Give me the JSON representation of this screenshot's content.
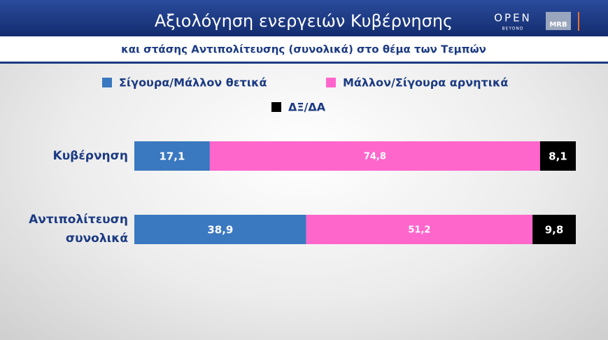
{
  "header": {
    "logo_top": "OPEN",
    "logo_bottom": "BEYOND",
    "logo_box": "MRB"
  },
  "chart_data": {
    "type": "stacked-barh",
    "title": "Αξιολόγηση ενεργειών Κυβέρνησης",
    "subtitle": "και στάσης Αντιπολίτευσης (συνολικά) στο θέμα των Τεμπών",
    "categories": [
      "Κυβέρνηση",
      "Αντιπολίτευση συνολικά"
    ],
    "series": [
      {
        "name": "Σίγουρα/Μάλλον θετικά",
        "color": "#3a78c0",
        "values": [
          17.1,
          38.9
        ],
        "value_labels": [
          "17,1",
          "38,9"
        ]
      },
      {
        "name": "Μάλλον/Σίγουρα αρνητικά",
        "color": "#ff66cc",
        "values": [
          74.8,
          51.2
        ],
        "value_labels": [
          "74,8",
          "51,2"
        ]
      },
      {
        "name": "ΔΞ/ΔΑ",
        "color": "#000000",
        "values": [
          8.1,
          9.8
        ],
        "value_labels": [
          "8,1",
          "9,8"
        ]
      }
    ]
  }
}
